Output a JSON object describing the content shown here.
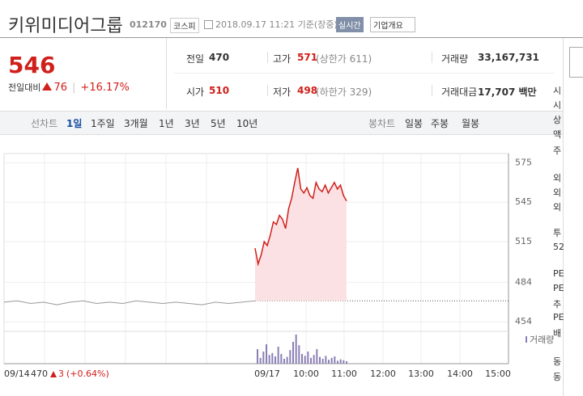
{
  "header": {
    "title": "키위미디어그룹",
    "code": "012170",
    "market": "코스피",
    "timestamp": "2018.09.17 11:21 기준(장중)",
    "realtime": "실시간",
    "company_menu": "기업개요"
  },
  "quote": {
    "price": "546",
    "change_label": "전일대비",
    "change": "76",
    "change_pct": "+16.17%",
    "stats": [
      {
        "label": "전일",
        "value": "470"
      },
      {
        "label": "고가",
        "value": "571",
        "note": "(상한가 611)"
      },
      {
        "label": "거래량",
        "value": "33,167,731"
      },
      {
        "label": "시가",
        "value": "510"
      },
      {
        "label": "저가",
        "value": "498",
        "note": "(하한가 329)"
      },
      {
        "label": "거래대금",
        "value": "17,707 백만"
      }
    ]
  },
  "tabs": {
    "line_label": "선차트",
    "line_periods": [
      "1일",
      "1주일",
      "3개월",
      "1년",
      "3년",
      "5년",
      "10년"
    ],
    "candle_label": "봉차트",
    "candle_periods": [
      "일봉",
      "주봉",
      "월봉"
    ]
  },
  "chart_data": {
    "type": "line",
    "ylim": [
      448,
      582
    ],
    "yticks": [
      575,
      545,
      515,
      484,
      454
    ],
    "reference": 470,
    "x_labels": [
      "09/17",
      "10:00",
      "11:00",
      "12:00",
      "13:00",
      "14:00",
      "15:00"
    ],
    "prev_day": {
      "date": "09/14",
      "close": "470",
      "change": "3",
      "change_pct": "(+0.64%)"
    },
    "volume_label": "거래량",
    "series": [
      {
        "color": "#999999",
        "values": [
          469,
          470,
          468,
          469,
          467,
          469,
          470,
          468,
          469,
          468,
          470,
          469,
          468,
          469,
          468,
          467,
          469,
          468,
          469,
          470
        ]
      },
      {
        "color": "#d0201b",
        "fill": "#fbe1e3",
        "values": [
          510,
          498,
          505,
          515,
          512,
          520,
          530,
          528,
          535,
          532,
          525,
          540,
          548,
          560,
          571,
          555,
          552,
          556,
          550,
          548,
          560,
          555,
          553,
          558,
          552,
          556,
          560,
          555,
          558,
          550,
          546
        ]
      }
    ],
    "volume": {
      "color": "#8a7fb5",
      "values": [
        30,
        12,
        25,
        40,
        18,
        22,
        15,
        35,
        20,
        10,
        14,
        28,
        45,
        60,
        38,
        20,
        16,
        25,
        12,
        18,
        30,
        14,
        10,
        16,
        8,
        12,
        15,
        6,
        9,
        7,
        5
      ]
    }
  },
  "sidebar": [
    "시",
    "시",
    "상",
    "액",
    "주",
    "외",
    "외",
    "외",
    "투",
    "52",
    "PE",
    "PE",
    "추",
    "PE",
    "배",
    "동",
    "동"
  ]
}
